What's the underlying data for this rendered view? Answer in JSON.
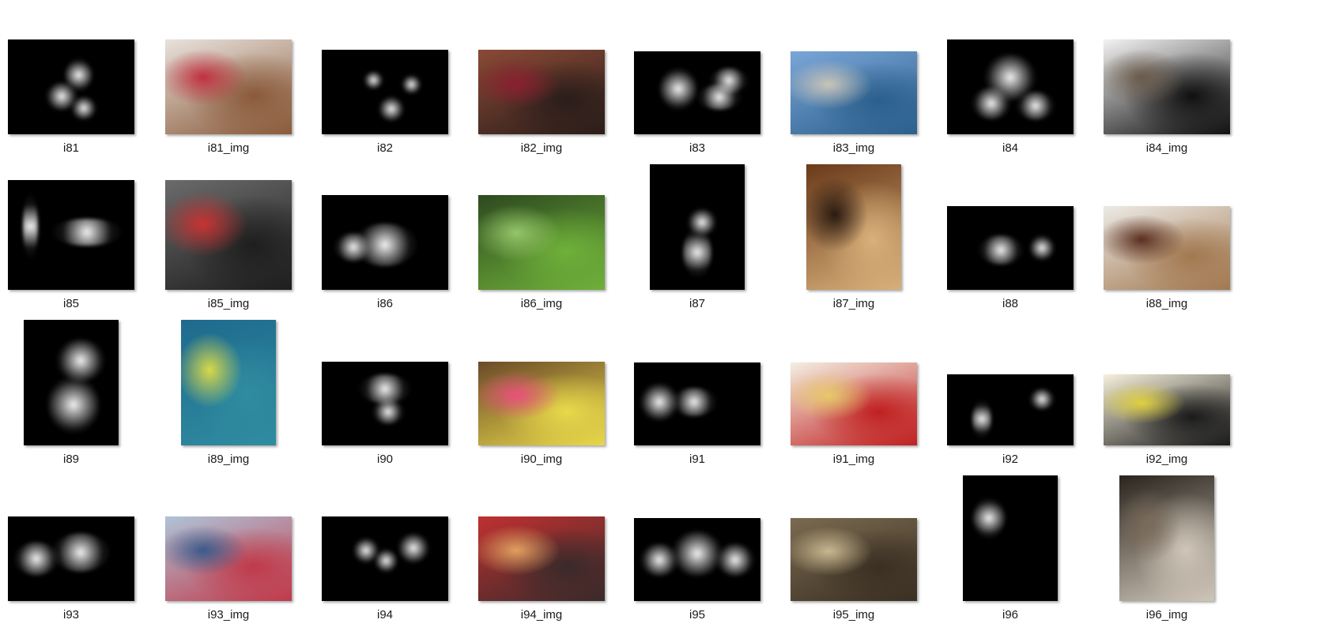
{
  "window": {
    "title": ""
  },
  "items": [
    {
      "label": "i81",
      "kind": "saliency",
      "shape": "wide",
      "palette": [
        "#000000",
        "#000000"
      ]
    },
    {
      "label": "i81_img",
      "kind": "photo",
      "shape": "wide",
      "palette": [
        "#e8e2dc",
        "#8a5a3a",
        "#c03040"
      ]
    },
    {
      "label": "i82",
      "kind": "saliency",
      "shape": "wide2",
      "palette": [
        "#000000",
        "#000000"
      ]
    },
    {
      "label": "i82_img",
      "kind": "photo",
      "shape": "wide2",
      "palette": [
        "#8a4a35",
        "#2a1d1a",
        "#8a2030"
      ]
    },
    {
      "label": "i83",
      "kind": "saliency",
      "shape": "wide2",
      "palette": [
        "#000000",
        "#000000"
      ]
    },
    {
      "label": "i83_img",
      "kind": "photo",
      "shape": "wide2",
      "palette": [
        "#7aa6d8",
        "#2b5f8c",
        "#c9c4b8"
      ]
    },
    {
      "label": "i84",
      "kind": "saliency",
      "shape": "wide",
      "palette": [
        "#000000",
        "#000000"
      ]
    },
    {
      "label": "i84_img",
      "kind": "photo",
      "shape": "wide",
      "palette": [
        "#f2f2f2",
        "#101010",
        "#6a5a4a"
      ]
    },
    {
      "label": "i85",
      "kind": "saliency",
      "shape": "wide",
      "palette": [
        "#000000",
        "#000000"
      ]
    },
    {
      "label": "i85_img",
      "kind": "photo",
      "shape": "wide",
      "palette": [
        "#6b6b6b",
        "#1e1e1e",
        "#c83232"
      ]
    },
    {
      "label": "i86",
      "kind": "saliency",
      "shape": "wide3",
      "palette": [
        "#000000",
        "#000000"
      ]
    },
    {
      "label": "i86_img",
      "kind": "photo",
      "shape": "wide3",
      "palette": [
        "#2d4a1f",
        "#6fb03a",
        "#94c46a"
      ]
    },
    {
      "label": "i87",
      "kind": "saliency",
      "shape": "tall",
      "palette": [
        "#000000",
        "#000000"
      ]
    },
    {
      "label": "i87_img",
      "kind": "photo",
      "shape": "tall",
      "palette": [
        "#6a3a1a",
        "#d8b07a",
        "#2a1a10"
      ]
    },
    {
      "label": "i88",
      "kind": "saliency",
      "shape": "wide2",
      "palette": [
        "#000000",
        "#000000"
      ]
    },
    {
      "label": "i88_img",
      "kind": "photo",
      "shape": "wide2",
      "palette": [
        "#eceae6",
        "#a2784f",
        "#5a2f1f"
      ]
    },
    {
      "label": "i89",
      "kind": "saliency",
      "shape": "tall",
      "palette": [
        "#000000",
        "#000000"
      ]
    },
    {
      "label": "i89_img",
      "kind": "photo",
      "shape": "tall",
      "palette": [
        "#1e6a8e",
        "#2f8ca0",
        "#d8d84a"
      ]
    },
    {
      "label": "i90",
      "kind": "saliency",
      "shape": "wide2",
      "palette": [
        "#000000",
        "#000000"
      ]
    },
    {
      "label": "i90_img",
      "kind": "photo",
      "shape": "wide2",
      "palette": [
        "#6b4a28",
        "#e8d84a",
        "#e8507a"
      ]
    },
    {
      "label": "i91",
      "kind": "saliency",
      "shape": "wide2",
      "palette": [
        "#000000",
        "#000000"
      ]
    },
    {
      "label": "i91_img",
      "kind": "photo",
      "shape": "wide2",
      "palette": [
        "#f4efe2",
        "#c02020",
        "#e6c86a"
      ]
    },
    {
      "label": "i92",
      "kind": "saliency",
      "shape": "wide4",
      "palette": [
        "#000000",
        "#000000"
      ]
    },
    {
      "label": "i92_img",
      "kind": "photo",
      "shape": "wide4",
      "palette": [
        "#f6f0dc",
        "#1a1a1a",
        "#e0d040"
      ]
    },
    {
      "label": "i93",
      "kind": "saliency",
      "shape": "wide2",
      "palette": [
        "#000000",
        "#000000"
      ]
    },
    {
      "label": "i93_img",
      "kind": "photo",
      "shape": "wide2",
      "palette": [
        "#b0c4d8",
        "#c03a4a",
        "#3a5a8a"
      ]
    },
    {
      "label": "i94",
      "kind": "saliency",
      "shape": "wide2",
      "palette": [
        "#000000",
        "#000000"
      ]
    },
    {
      "label": "i94_img",
      "kind": "photo",
      "shape": "wide2",
      "palette": [
        "#c03030",
        "#3a2a2a",
        "#e0a060"
      ]
    },
    {
      "label": "i95",
      "kind": "saliency",
      "shape": "wide2",
      "palette": [
        "#000000",
        "#000000"
      ]
    },
    {
      "label": "i95_img",
      "kind": "photo",
      "shape": "wide2",
      "palette": [
        "#7a6a50",
        "#3a2f22",
        "#c8b890"
      ]
    },
    {
      "label": "i96",
      "kind": "saliency",
      "shape": "tall",
      "palette": [
        "#000000",
        "#000000"
      ]
    },
    {
      "label": "i96_img",
      "kind": "photo",
      "shape": "tall",
      "palette": [
        "#2a241e",
        "#cfc6b8",
        "#7a6a5a"
      ]
    }
  ]
}
